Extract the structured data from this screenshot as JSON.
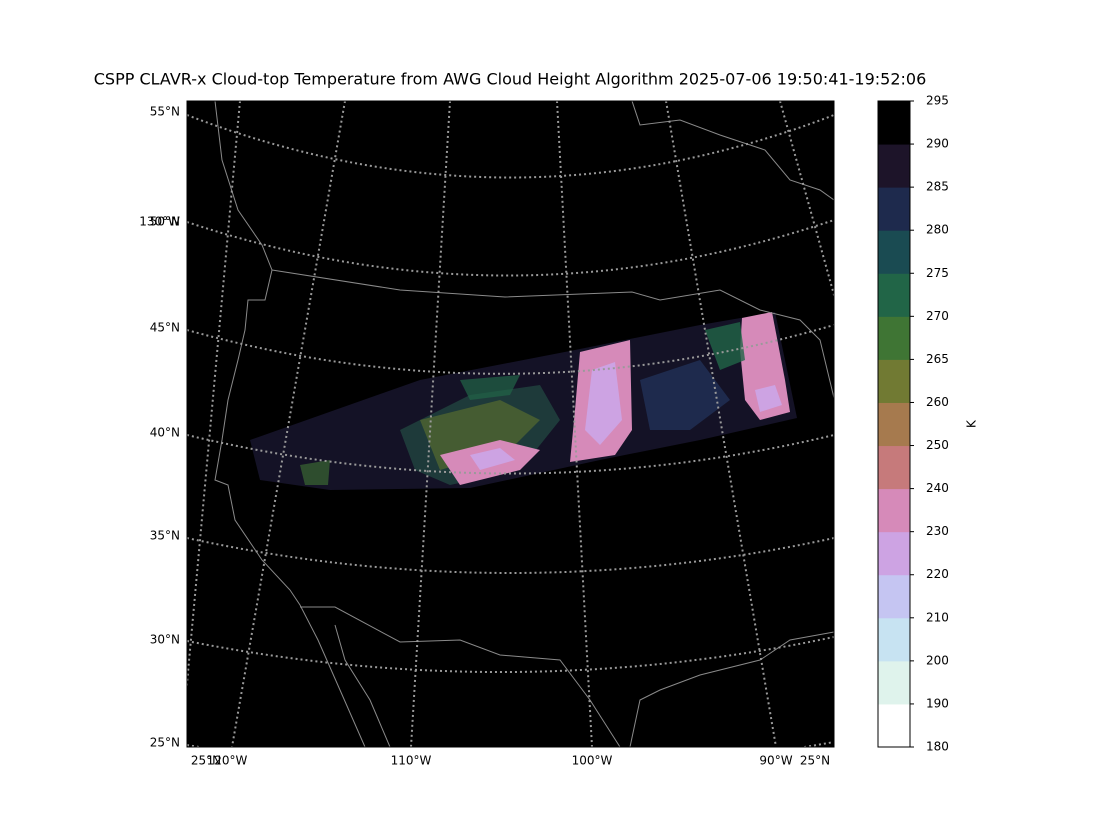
{
  "title": "CSPP CLAVR-x Cloud-top Temperature from AWG Cloud Height Algorithm 2025-07-06 19:50:41-19:52:06",
  "map": {
    "lat_labels": [
      "55°N",
      "50°N",
      "45°N",
      "40°N",
      "35°N",
      "30°N",
      "25°N"
    ],
    "left_lon_label": "130°W",
    "lon_labels": [
      "120°W",
      "110°W",
      "100°W",
      "90°W"
    ],
    "bottom_lat_labels": [
      "25°N",
      "25°N"
    ]
  },
  "colorbar": {
    "label": "K",
    "boundaries": [
      180,
      190,
      200,
      210,
      220,
      230,
      240,
      250,
      260,
      265,
      270,
      275,
      280,
      285,
      290,
      295
    ],
    "colors": [
      "#ffffff",
      "#dff3ec",
      "#c7e3f2",
      "#c5c5f2",
      "#cda3e3",
      "#d68ab9",
      "#c67a7b",
      "#a67a4e",
      "#717a33",
      "#3f7534",
      "#216547",
      "#1a4b52",
      "#1e2a4d",
      "#1d1429",
      "#000000"
    ]
  }
}
